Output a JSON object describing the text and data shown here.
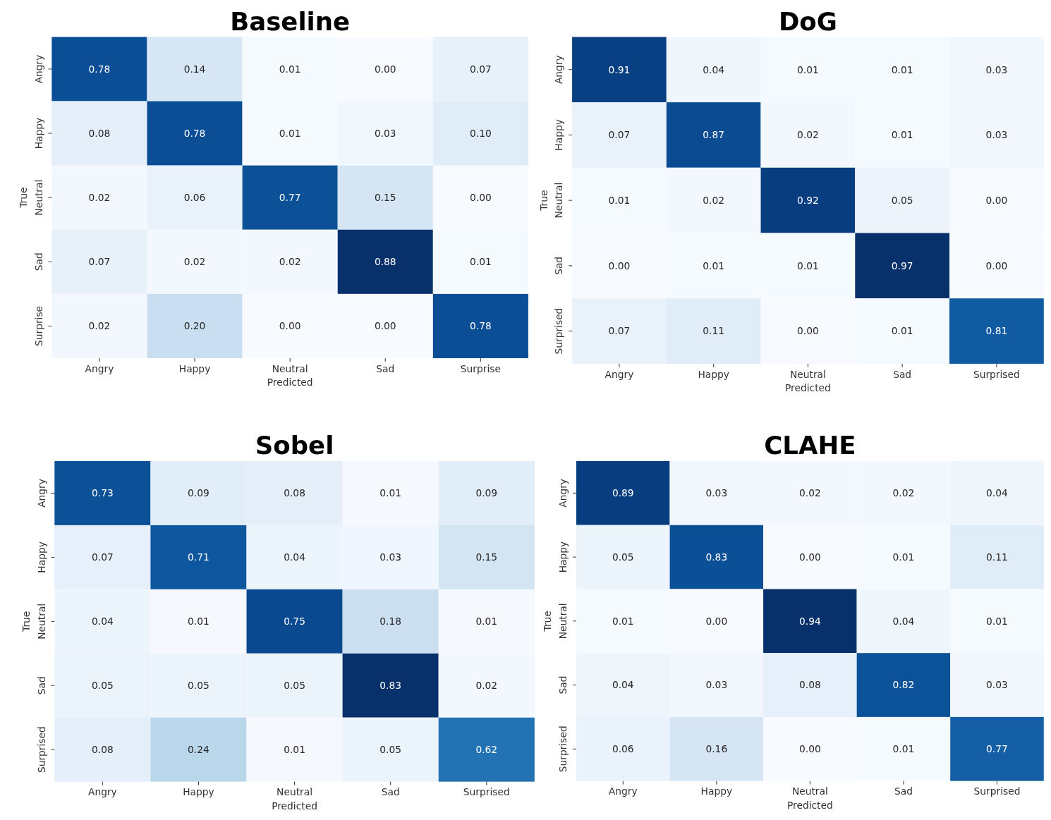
{
  "chart_data": [
    {
      "type": "heatmap",
      "title": "Baseline",
      "xlabel": "Predicted",
      "ylabel": "True",
      "data_labels": true,
      "categories": [
        "Angry",
        "Happy",
        "Neutral",
        "Sad",
        "Surprise"
      ],
      "y_categories": [
        "Angry",
        "Happy",
        "Neutral",
        "Sad",
        "Surprise"
      ],
      "cells": [
        [
          0.78,
          0.14,
          0.01,
          0.0,
          0.07
        ],
        [
          0.08,
          0.78,
          0.01,
          0.03,
          0.1
        ],
        [
          0.02,
          0.06,
          0.77,
          0.15,
          0.0
        ],
        [
          0.07,
          0.02,
          0.02,
          0.88,
          0.01
        ],
        [
          0.02,
          0.2,
          0.0,
          0.0,
          0.78
        ]
      ],
      "cell_labels": [
        [
          "0.78",
          "0.14",
          "0.01",
          "0.00",
          "0.07"
        ],
        [
          "0.08",
          "0.78",
          "0.01",
          "0.03",
          "0.10"
        ],
        [
          "0.02",
          "0.06",
          "0.77",
          "0.15",
          "0.00"
        ],
        [
          "0.07",
          "0.02",
          "0.02",
          "0.88",
          "0.01"
        ],
        [
          "0.02",
          "0.20",
          "0.00",
          "0.00",
          "0.78"
        ]
      ]
    },
    {
      "type": "heatmap",
      "title": "DoG",
      "xlabel": "Predicted",
      "ylabel": "True",
      "data_labels": true,
      "categories": [
        "Angry",
        "Happy",
        "Neutral",
        "Sad",
        "Surprised"
      ],
      "y_categories": [
        "Angry",
        "Happy",
        "Neutral",
        "Sad",
        "Surprised"
      ],
      "cells": [
        [
          0.91,
          0.04,
          0.01,
          0.01,
          0.03
        ],
        [
          0.07,
          0.87,
          0.02,
          0.01,
          0.03
        ],
        [
          0.01,
          0.02,
          0.92,
          0.05,
          0.0
        ],
        [
          0.0,
          0.01,
          0.01,
          0.97,
          0.0
        ],
        [
          0.07,
          0.11,
          0.0,
          0.01,
          0.81
        ]
      ],
      "cell_labels": [
        [
          "0.91",
          "0.04",
          "0.01",
          "0.01",
          "0.03"
        ],
        [
          "0.07",
          "0.87",
          "0.02",
          "0.01",
          "0.03"
        ],
        [
          "0.01",
          "0.02",
          "0.92",
          "0.05",
          "0.00"
        ],
        [
          "0.00",
          "0.01",
          "0.01",
          "0.97",
          "0.00"
        ],
        [
          "0.07",
          "0.11",
          "0.00",
          "0.01",
          "0.81"
        ]
      ]
    },
    {
      "type": "heatmap",
      "title": "Sobel",
      "xlabel": "Predicted",
      "ylabel": "True",
      "data_labels": true,
      "categories": [
        "Angry",
        "Happy",
        "Neutral",
        "Sad",
        "Surprised"
      ],
      "y_categories": [
        "Angry",
        "Happy",
        "Neutral",
        "Sad",
        "Surprised"
      ],
      "cells": [
        [
          0.73,
          0.09,
          0.08,
          0.01,
          0.09
        ],
        [
          0.07,
          0.71,
          0.04,
          0.03,
          0.15
        ],
        [
          0.04,
          0.01,
          0.75,
          0.18,
          0.01
        ],
        [
          0.05,
          0.05,
          0.05,
          0.83,
          0.02
        ],
        [
          0.08,
          0.24,
          0.01,
          0.05,
          0.62
        ]
      ],
      "cell_labels": [
        [
          "0.73",
          "0.09",
          "0.08",
          "0.01",
          "0.09"
        ],
        [
          "0.07",
          "0.71",
          "0.04",
          "0.03",
          "0.15"
        ],
        [
          "0.04",
          "0.01",
          "0.75",
          "0.18",
          "0.01"
        ],
        [
          "0.05",
          "0.05",
          "0.05",
          "0.83",
          "0.02"
        ],
        [
          "0.08",
          "0.24",
          "0.01",
          "0.05",
          "0.62"
        ]
      ]
    },
    {
      "type": "heatmap",
      "title": "CLAHE",
      "xlabel": "Predicted",
      "ylabel": "True",
      "data_labels": true,
      "categories": [
        "Angry",
        "Happy",
        "Neutral",
        "Sad",
        "Surprised"
      ],
      "y_categories": [
        "Angry",
        "Happy",
        "Neutral",
        "Sad",
        "Surprised"
      ],
      "cells": [
        [
          0.89,
          0.03,
          0.02,
          0.02,
          0.04
        ],
        [
          0.05,
          0.83,
          0.0,
          0.01,
          0.11
        ],
        [
          0.01,
          0.0,
          0.94,
          0.04,
          0.01
        ],
        [
          0.04,
          0.03,
          0.08,
          0.82,
          0.03
        ],
        [
          0.06,
          0.16,
          0.0,
          0.01,
          0.77
        ]
      ],
      "cell_labels": [
        [
          "0.89",
          "0.03",
          "0.02",
          "0.02",
          "0.04"
        ],
        [
          "0.05",
          "0.83",
          "0.00",
          "0.01",
          "0.11"
        ],
        [
          "0.01",
          "0.00",
          "0.94",
          "0.04",
          "0.01"
        ],
        [
          "0.04",
          "0.03",
          "0.08",
          "0.82",
          "0.03"
        ],
        [
          "0.06",
          "0.16",
          "0.00",
          "0.01",
          "0.77"
        ]
      ]
    }
  ]
}
